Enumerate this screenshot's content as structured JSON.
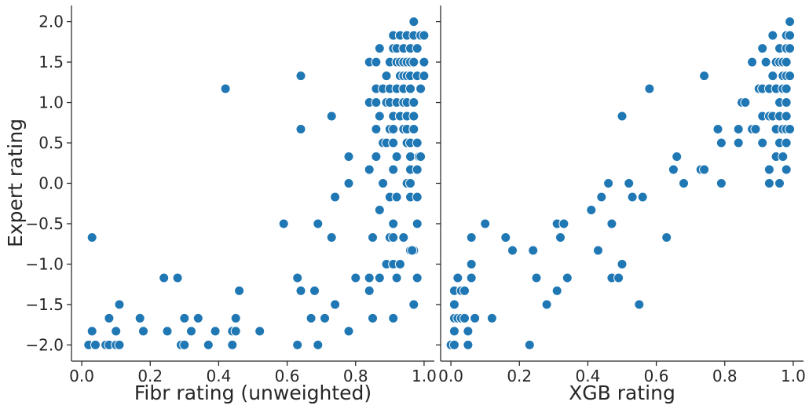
{
  "chart_data": [
    {
      "type": "scatter",
      "xlabel": "Fibr rating (unweighted)",
      "ylabel": "Expert rating",
      "xlim": [
        -0.03,
        1.03
      ],
      "ylim": [
        -2.2,
        2.2
      ],
      "xticks": [
        "0.0",
        "0.2",
        "0.4",
        "0.6",
        "0.8",
        "1.0"
      ],
      "yticks": [
        "2.0",
        "1.5",
        "1.0",
        "0.5",
        "0.0",
        "−0.5",
        "−1.0",
        "−1.5",
        "−2.0"
      ],
      "color": "#1f77b4",
      "points": [
        [
          0.02,
          -2.0
        ],
        [
          0.04,
          -2.0
        ],
        [
          0.07,
          -2.0
        ],
        [
          0.08,
          -2.0
        ],
        [
          0.1,
          -2.0
        ],
        [
          0.11,
          -2.0
        ],
        [
          0.29,
          -2.0
        ],
        [
          0.3,
          -2.0
        ],
        [
          0.37,
          -2.0
        ],
        [
          0.44,
          -2.0
        ],
        [
          0.63,
          -2.0
        ],
        [
          0.69,
          -2.0
        ],
        [
          0.03,
          -1.83
        ],
        [
          0.1,
          -1.83
        ],
        [
          0.18,
          -1.83
        ],
        [
          0.25,
          -1.83
        ],
        [
          0.32,
          -1.83
        ],
        [
          0.39,
          -1.83
        ],
        [
          0.44,
          -1.83
        ],
        [
          0.45,
          -1.83
        ],
        [
          0.52,
          -1.83
        ],
        [
          0.78,
          -1.83
        ],
        [
          0.08,
          -1.67
        ],
        [
          0.17,
          -1.67
        ],
        [
          0.3,
          -1.67
        ],
        [
          0.34,
          -1.67
        ],
        [
          0.45,
          -1.67
        ],
        [
          0.67,
          -1.67
        ],
        [
          0.71,
          -1.67
        ],
        [
          0.85,
          -1.67
        ],
        [
          0.91,
          -1.67
        ],
        [
          0.11,
          -1.5
        ],
        [
          0.74,
          -1.5
        ],
        [
          0.97,
          -1.5
        ],
        [
          0.46,
          -1.33
        ],
        [
          0.64,
          -1.33
        ],
        [
          0.68,
          -1.33
        ],
        [
          0.84,
          -1.33
        ],
        [
          0.24,
          -1.17
        ],
        [
          0.28,
          -1.17
        ],
        [
          0.63,
          -1.17
        ],
        [
          0.8,
          -1.17
        ],
        [
          0.84,
          -1.17
        ],
        [
          0.87,
          -1.17
        ],
        [
          0.92,
          -1.17
        ],
        [
          0.98,
          -1.17
        ],
        [
          0.89,
          -1.0
        ],
        [
          0.91,
          -1.0
        ],
        [
          0.93,
          -1.0
        ],
        [
          0.97,
          -0.83
        ],
        [
          0.96,
          -0.83
        ],
        [
          0.965,
          -0.83
        ],
        [
          0.03,
          -0.67
        ],
        [
          0.73,
          -0.67
        ],
        [
          0.85,
          -0.67
        ],
        [
          0.9,
          -0.67
        ],
        [
          0.91,
          -0.67
        ],
        [
          0.94,
          -0.67
        ],
        [
          0.59,
          -0.5
        ],
        [
          0.69,
          -0.5
        ],
        [
          0.91,
          -0.5
        ],
        [
          0.98,
          -0.5
        ],
        [
          0.87,
          -0.33
        ],
        [
          0.74,
          -0.17
        ],
        [
          0.9,
          -0.17
        ],
        [
          0.92,
          -0.17
        ],
        [
          0.96,
          -0.17
        ],
        [
          0.98,
          -0.17
        ],
        [
          0.78,
          0.0
        ],
        [
          0.88,
          0.0
        ],
        [
          0.95,
          0.0
        ],
        [
          0.96,
          0.0
        ],
        [
          0.84,
          0.17
        ],
        [
          0.91,
          0.17
        ],
        [
          0.96,
          0.17
        ],
        [
          0.98,
          0.17
        ],
        [
          0.78,
          0.33
        ],
        [
          0.86,
          0.33
        ],
        [
          0.92,
          0.33
        ],
        [
          0.96,
          0.33
        ],
        [
          0.985,
          0.33
        ],
        [
          0.99,
          0.33
        ],
        [
          0.88,
          0.5
        ],
        [
          0.89,
          0.5
        ],
        [
          0.91,
          0.5
        ],
        [
          0.95,
          0.5
        ],
        [
          0.96,
          0.5
        ],
        [
          0.98,
          0.5
        ],
        [
          0.64,
          0.67
        ],
        [
          0.86,
          0.67
        ],
        [
          0.9,
          0.67
        ],
        [
          0.91,
          0.67
        ],
        [
          0.94,
          0.67
        ],
        [
          0.95,
          0.67
        ],
        [
          0.97,
          0.67
        ],
        [
          0.73,
          0.83
        ],
        [
          0.87,
          0.83
        ],
        [
          0.91,
          0.83
        ],
        [
          0.93,
          0.83
        ],
        [
          0.95,
          0.83
        ],
        [
          0.97,
          0.83
        ],
        [
          0.84,
          1.0
        ],
        [
          0.86,
          1.0
        ],
        [
          0.89,
          1.0
        ],
        [
          0.9,
          1.0
        ],
        [
          0.92,
          1.0
        ],
        [
          0.94,
          1.0
        ],
        [
          0.95,
          1.0
        ],
        [
          0.97,
          1.0
        ],
        [
          0.42,
          1.17
        ],
        [
          0.86,
          1.17
        ],
        [
          0.88,
          1.17
        ],
        [
          0.9,
          1.17
        ],
        [
          0.92,
          1.17
        ],
        [
          0.94,
          1.17
        ],
        [
          0.96,
          1.17
        ],
        [
          0.99,
          1.17
        ],
        [
          0.64,
          1.33
        ],
        [
          0.89,
          1.33
        ],
        [
          0.93,
          1.33
        ],
        [
          0.94,
          1.33
        ],
        [
          0.95,
          1.33
        ],
        [
          0.96,
          1.33
        ],
        [
          0.98,
          1.33
        ],
        [
          1.0,
          1.33
        ],
        [
          0.84,
          1.5
        ],
        [
          0.86,
          1.5
        ],
        [
          0.9,
          1.5
        ],
        [
          0.92,
          1.5
        ],
        [
          0.93,
          1.5
        ],
        [
          0.94,
          1.5
        ],
        [
          0.95,
          1.5
        ],
        [
          0.96,
          1.5
        ],
        [
          0.97,
          1.5
        ],
        [
          1.0,
          1.5
        ],
        [
          0.87,
          1.67
        ],
        [
          0.91,
          1.67
        ],
        [
          0.92,
          1.67
        ],
        [
          0.94,
          1.67
        ],
        [
          0.96,
          1.67
        ],
        [
          0.98,
          1.67
        ],
        [
          0.91,
          1.83
        ],
        [
          0.93,
          1.83
        ],
        [
          0.95,
          1.83
        ],
        [
          0.97,
          1.83
        ],
        [
          0.99,
          1.83
        ],
        [
          1.0,
          1.83
        ],
        [
          0.97,
          2.0
        ]
      ]
    },
    {
      "type": "scatter",
      "xlabel": "XGB rating",
      "ylabel": "",
      "xlim": [
        -0.03,
        1.03
      ],
      "ylim": [
        -2.2,
        2.2
      ],
      "xticks": [
        "0.0",
        "0.2",
        "0.4",
        "0.6",
        "0.8",
        "1.0"
      ],
      "color": "#1f77b4",
      "points": [
        [
          0.0,
          -2.0
        ],
        [
          0.01,
          -2.0
        ],
        [
          0.05,
          -2.0
        ],
        [
          0.23,
          -2.0
        ],
        [
          0.01,
          -1.83
        ],
        [
          0.05,
          -1.83
        ],
        [
          0.01,
          -1.67
        ],
        [
          0.02,
          -1.67
        ],
        [
          0.03,
          -1.67
        ],
        [
          0.04,
          -1.67
        ],
        [
          0.07,
          -1.67
        ],
        [
          0.12,
          -1.67
        ],
        [
          0.01,
          -1.5
        ],
        [
          0.28,
          -1.5
        ],
        [
          0.55,
          -1.5
        ],
        [
          0.01,
          -1.33
        ],
        [
          0.03,
          -1.33
        ],
        [
          0.04,
          -1.33
        ],
        [
          0.31,
          -1.33
        ],
        [
          0.02,
          -1.17
        ],
        [
          0.06,
          -1.17
        ],
        [
          0.25,
          -1.17
        ],
        [
          0.34,
          -1.17
        ],
        [
          0.47,
          -1.17
        ],
        [
          0.49,
          -1.17
        ],
        [
          0.06,
          -1.0
        ],
        [
          0.5,
          -1.0
        ],
        [
          0.18,
          -0.83
        ],
        [
          0.24,
          -0.83
        ],
        [
          0.43,
          -0.83
        ],
        [
          0.06,
          -0.67
        ],
        [
          0.16,
          -0.67
        ],
        [
          0.32,
          -0.67
        ],
        [
          0.63,
          -0.67
        ],
        [
          0.1,
          -0.5
        ],
        [
          0.31,
          -0.5
        ],
        [
          0.33,
          -0.5
        ],
        [
          0.47,
          -0.5
        ],
        [
          0.41,
          -0.33
        ],
        [
          0.44,
          -0.17
        ],
        [
          0.53,
          -0.17
        ],
        [
          0.56,
          -0.17
        ],
        [
          0.46,
          0.0
        ],
        [
          0.52,
          0.0
        ],
        [
          0.68,
          0.0
        ],
        [
          0.79,
          0.0
        ],
        [
          0.93,
          0.0
        ],
        [
          0.96,
          0.0
        ],
        [
          0.65,
          0.17
        ],
        [
          0.73,
          0.17
        ],
        [
          0.74,
          0.17
        ],
        [
          0.93,
          0.17
        ],
        [
          0.98,
          0.17
        ],
        [
          0.66,
          0.33
        ],
        [
          0.95,
          0.33
        ],
        [
          0.97,
          0.33
        ],
        [
          0.79,
          0.5
        ],
        [
          0.84,
          0.5
        ],
        [
          0.91,
          0.5
        ],
        [
          0.96,
          0.5
        ],
        [
          0.98,
          0.5
        ],
        [
          0.78,
          0.67
        ],
        [
          0.84,
          0.67
        ],
        [
          0.88,
          0.67
        ],
        [
          0.89,
          0.67
        ],
        [
          0.95,
          0.67
        ],
        [
          0.97,
          0.67
        ],
        [
          0.98,
          0.67
        ],
        [
          0.99,
          0.67
        ],
        [
          0.5,
          0.83
        ],
        [
          0.91,
          0.83
        ],
        [
          0.93,
          0.83
        ],
        [
          0.94,
          0.83
        ],
        [
          0.96,
          0.83
        ],
        [
          0.98,
          0.83
        ],
        [
          0.85,
          1.0
        ],
        [
          0.86,
          1.0
        ],
        [
          0.96,
          1.0
        ],
        [
          0.98,
          1.0
        ],
        [
          0.58,
          1.17
        ],
        [
          0.9,
          1.17
        ],
        [
          0.91,
          1.17
        ],
        [
          0.93,
          1.17
        ],
        [
          0.95,
          1.17
        ],
        [
          0.97,
          1.17
        ],
        [
          0.98,
          1.17
        ],
        [
          0.74,
          1.33
        ],
        [
          0.94,
          1.33
        ],
        [
          0.97,
          1.33
        ],
        [
          0.98,
          1.33
        ],
        [
          0.99,
          1.33
        ],
        [
          0.88,
          1.5
        ],
        [
          0.92,
          1.5
        ],
        [
          0.95,
          1.5
        ],
        [
          0.96,
          1.5
        ],
        [
          0.97,
          1.5
        ],
        [
          0.98,
          1.5
        ],
        [
          0.91,
          1.67
        ],
        [
          0.96,
          1.67
        ],
        [
          0.98,
          1.67
        ],
        [
          0.99,
          1.67
        ],
        [
          0.94,
          1.83
        ],
        [
          0.98,
          1.83
        ],
        [
          0.99,
          1.83
        ],
        [
          0.99,
          2.0
        ]
      ]
    }
  ]
}
